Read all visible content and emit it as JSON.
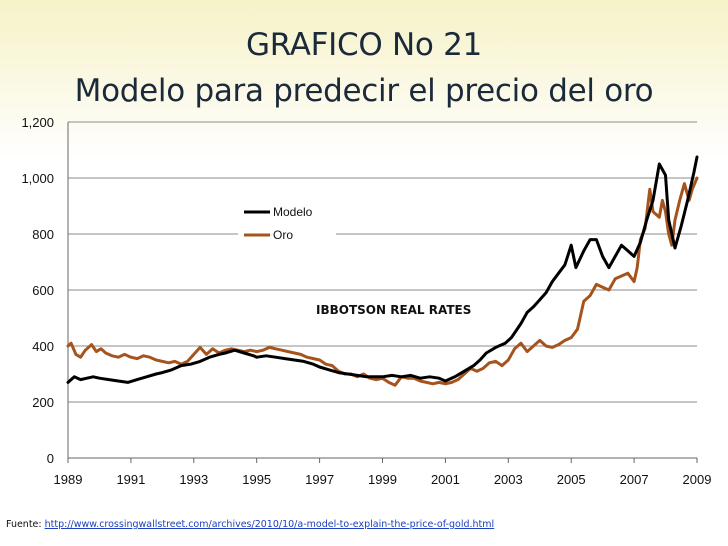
{
  "title_line1": "GRAFICO No 21",
  "title_line2": "Modelo para predecir el precio del oro",
  "source_prefix": "Fuente:",
  "source_url": "http://www.crossingwallstreet.com/archives/2010/10/a-model-to-explain-the-price-of-gold.html",
  "chart_data": {
    "type": "line",
    "title": "GRAFICO No 21 Modelo para predecir el precio del oro",
    "annotation": "IBBOTSON REAL RATES",
    "xlim": [
      1989,
      2009
    ],
    "ylim": [
      0,
      1200
    ],
    "x_ticks": [
      "1989",
      "1991",
      "1993",
      "1995",
      "1997",
      "1999",
      "2001",
      "2003",
      "2005",
      "2007",
      "2009"
    ],
    "y_ticks": [
      "0",
      "200",
      "400",
      "600",
      "800",
      "1,000",
      "1,200"
    ],
    "grid": "horizontal",
    "legend_position": "top-center",
    "series": [
      {
        "name": "Modelo",
        "color": "#000000",
        "x": [
          1989.0,
          1989.2,
          1989.4,
          1989.6,
          1989.8,
          1990.0,
          1990.3,
          1990.6,
          1990.9,
          1991.2,
          1991.5,
          1991.8,
          1992.0,
          1992.3,
          1992.6,
          1992.9,
          1993.2,
          1993.5,
          1993.8,
          1994.0,
          1994.3,
          1994.6,
          1994.9,
          1995.0,
          1995.3,
          1995.6,
          1995.9,
          1996.2,
          1996.5,
          1996.8,
          1997.0,
          1997.3,
          1997.6,
          1997.9,
          1998.2,
          1998.5,
          1998.8,
          1999.0,
          1999.3,
          1999.6,
          1999.9,
          2000.2,
          2000.5,
          2000.8,
          2001.0,
          2001.3,
          2001.6,
          2001.9,
          2002.1,
          2002.3,
          2002.6,
          2002.9,
          2003.1,
          2003.4,
          2003.6,
          2003.8,
          2004.0,
          2004.2,
          2004.4,
          2004.6,
          2004.8,
          2005.0,
          2005.15,
          2005.4,
          2005.6,
          2005.8,
          2006.0,
          2006.2,
          2006.4,
          2006.6,
          2006.8,
          2007.0,
          2007.2,
          2007.4,
          2007.6,
          2007.8,
          2008.0,
          2008.1,
          2008.3,
          2008.5,
          2008.7,
          2008.9,
          2009.0
        ],
        "values": [
          270,
          290,
          280,
          285,
          290,
          285,
          280,
          275,
          270,
          280,
          290,
          300,
          305,
          315,
          330,
          335,
          345,
          360,
          370,
          375,
          385,
          375,
          365,
          360,
          365,
          360,
          355,
          350,
          345,
          335,
          325,
          315,
          305,
          300,
          295,
          290,
          290,
          290,
          295,
          290,
          295,
          285,
          290,
          285,
          275,
          290,
          310,
          330,
          350,
          375,
          395,
          410,
          430,
          480,
          520,
          540,
          565,
          590,
          630,
          660,
          690,
          760,
          680,
          740,
          780,
          780,
          720,
          680,
          720,
          760,
          740,
          720,
          770,
          850,
          920,
          1050,
          1010,
          850,
          750,
          830,
          920,
          1020,
          1075
        ]
      },
      {
        "name": "Oro",
        "color": "#a5541d",
        "x": [
          1989.0,
          1989.1,
          1989.25,
          1989.4,
          1989.55,
          1989.75,
          1989.9,
          1990.05,
          1990.2,
          1990.4,
          1990.6,
          1990.8,
          1991.0,
          1991.2,
          1991.4,
          1991.6,
          1991.8,
          1992.0,
          1992.2,
          1992.4,
          1992.6,
          1992.8,
          1993.0,
          1993.2,
          1993.4,
          1993.6,
          1993.8,
          1994.0,
          1994.2,
          1994.4,
          1994.6,
          1994.8,
          1995.0,
          1995.2,
          1995.4,
          1995.6,
          1995.8,
          1996.0,
          1996.2,
          1996.4,
          1996.6,
          1996.8,
          1997.0,
          1997.2,
          1997.4,
          1997.6,
          1997.8,
          1998.0,
          1998.2,
          1998.4,
          1998.6,
          1998.8,
          1999.0,
          1999.2,
          1999.4,
          1999.6,
          1999.8,
          2000.0,
          2000.2,
          2000.4,
          2000.6,
          2000.8,
          2001.0,
          2001.2,
          2001.4,
          2001.6,
          2001.8,
          2002.0,
          2002.2,
          2002.4,
          2002.6,
          2002.8,
          2003.0,
          2003.2,
          2003.4,
          2003.6,
          2003.8,
          2004.0,
          2004.2,
          2004.4,
          2004.6,
          2004.8,
          2005.0,
          2005.2,
          2005.4,
          2005.6,
          2005.8,
          2006.0,
          2006.2,
          2006.4,
          2006.6,
          2006.8,
          2007.0,
          2007.1,
          2007.2,
          2007.35,
          2007.5,
          2007.6,
          2007.8,
          2007.9,
          2008.0,
          2008.1,
          2008.2,
          2008.3,
          2008.45,
          2008.6,
          2008.75,
          2008.85,
          2009.0
        ],
        "values": [
          400,
          410,
          370,
          360,
          385,
          405,
          380,
          390,
          375,
          365,
          360,
          370,
          360,
          355,
          365,
          360,
          350,
          345,
          340,
          345,
          335,
          345,
          370,
          395,
          370,
          390,
          375,
          385,
          390,
          385,
          380,
          385,
          380,
          385,
          395,
          390,
          385,
          380,
          375,
          370,
          360,
          355,
          350,
          335,
          330,
          310,
          300,
          300,
          290,
          300,
          285,
          280,
          285,
          270,
          260,
          290,
          285,
          285,
          275,
          270,
          265,
          270,
          265,
          270,
          280,
          300,
          320,
          310,
          320,
          340,
          345,
          330,
          350,
          390,
          410,
          380,
          400,
          420,
          400,
          395,
          405,
          420,
          430,
          460,
          560,
          580,
          620,
          610,
          600,
          640,
          650,
          660,
          630,
          680,
          780,
          820,
          960,
          880,
          860,
          920,
          880,
          800,
          760,
          850,
          920,
          980,
          920,
          960,
          1000
        ]
      }
    ]
  }
}
